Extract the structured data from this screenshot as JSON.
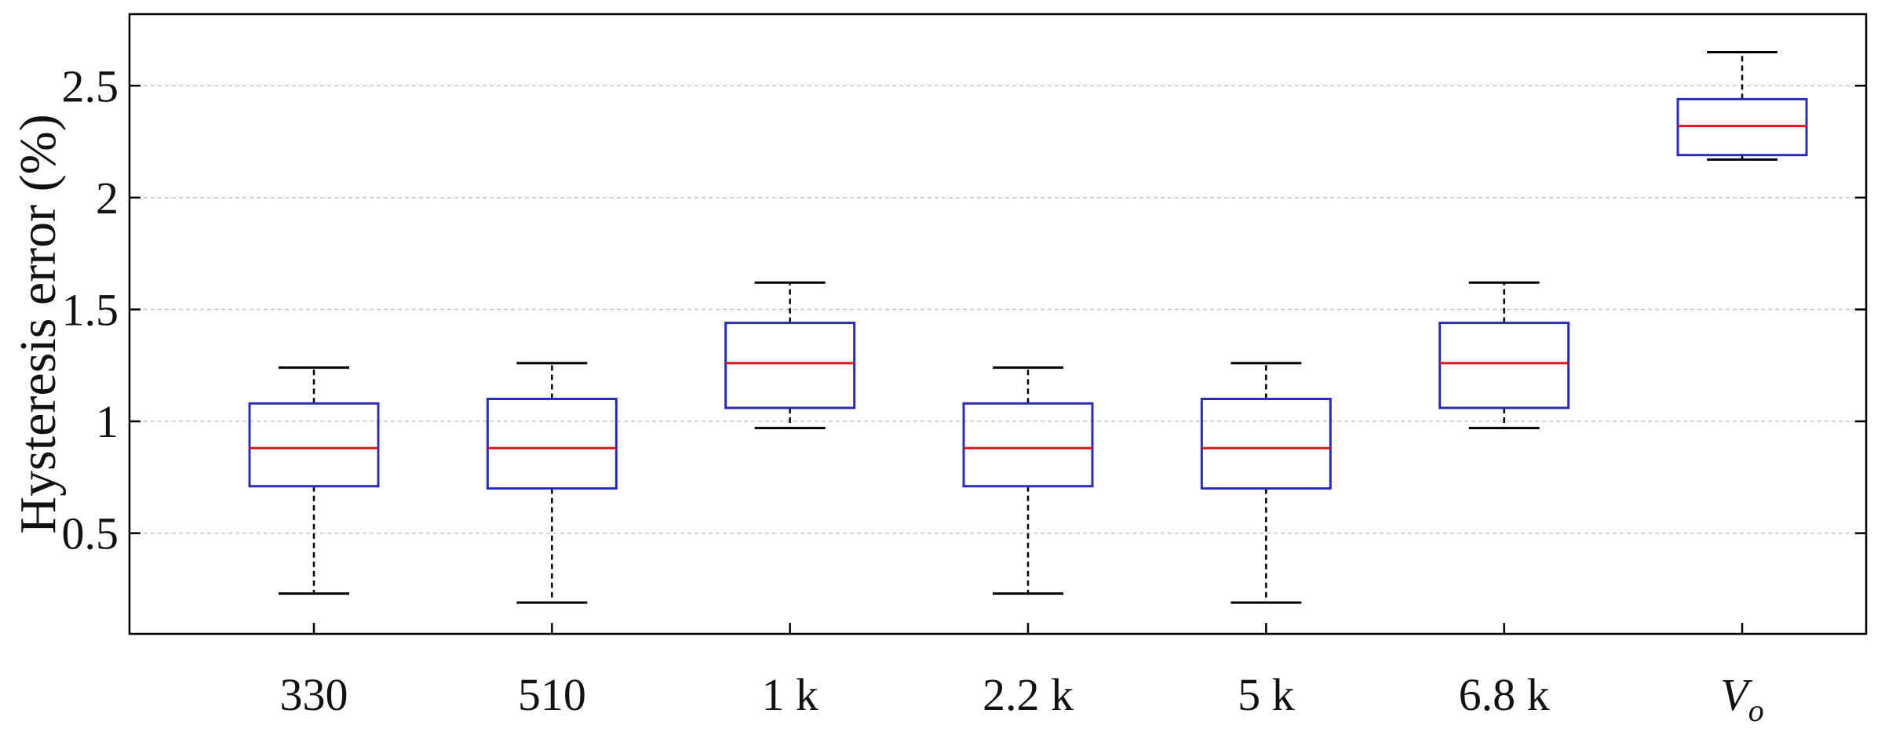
{
  "chart_data": {
    "type": "box",
    "categories": [
      "330",
      "510",
      "1 k",
      "2.2 k",
      "5 k",
      "6.8 k",
      "V_o"
    ],
    "category_display": [
      {
        "main": "330",
        "sub": ""
      },
      {
        "main": "510",
        "sub": ""
      },
      {
        "main": "1 k",
        "sub": ""
      },
      {
        "main": "2.2 k",
        "sub": ""
      },
      {
        "main": "5 k",
        "sub": ""
      },
      {
        "main": "6.8 k",
        "sub": ""
      },
      {
        "main": "V",
        "sub": "o"
      }
    ],
    "boxes": [
      {
        "category": "330",
        "whisker_low": 0.23,
        "q1": 0.71,
        "median": 0.88,
        "q3": 1.08,
        "whisker_high": 1.24
      },
      {
        "category": "510",
        "whisker_low": 0.19,
        "q1": 0.7,
        "median": 0.88,
        "q3": 1.1,
        "whisker_high": 1.26
      },
      {
        "category": "1 k",
        "whisker_low": 0.97,
        "q1": 1.06,
        "median": 1.26,
        "q3": 1.44,
        "whisker_high": 1.62
      },
      {
        "category": "2.2 k",
        "whisker_low": 0.23,
        "q1": 0.71,
        "median": 0.88,
        "q3": 1.08,
        "whisker_high": 1.24
      },
      {
        "category": "5 k",
        "whisker_low": 0.19,
        "q1": 0.7,
        "median": 0.88,
        "q3": 1.1,
        "whisker_high": 1.26
      },
      {
        "category": "6.8 k",
        "whisker_low": 0.97,
        "q1": 1.06,
        "median": 1.26,
        "q3": 1.44,
        "whisker_high": 1.62
      },
      {
        "category": "V_o",
        "whisker_low": 2.17,
        "q1": 2.19,
        "median": 2.32,
        "q3": 2.44,
        "whisker_high": 2.65
      }
    ],
    "title": "",
    "xlabel": "",
    "ylabel": "Hysteresis error (%)",
    "ylim": [
      0.05,
      2.82
    ],
    "yticks": [
      0.5,
      1,
      1.5,
      2,
      2.5
    ],
    "ytick_labels": [
      "0.5",
      "1",
      "1.5",
      "2",
      "2.5"
    ],
    "grid": {
      "y": true,
      "x": false,
      "style": "dashed"
    },
    "legend": "none",
    "colors": {
      "box": "#2b2bb5",
      "median": "#e0141e",
      "whisker": "#000000",
      "grid": "#c4c4c4",
      "axis": "#000000"
    }
  }
}
